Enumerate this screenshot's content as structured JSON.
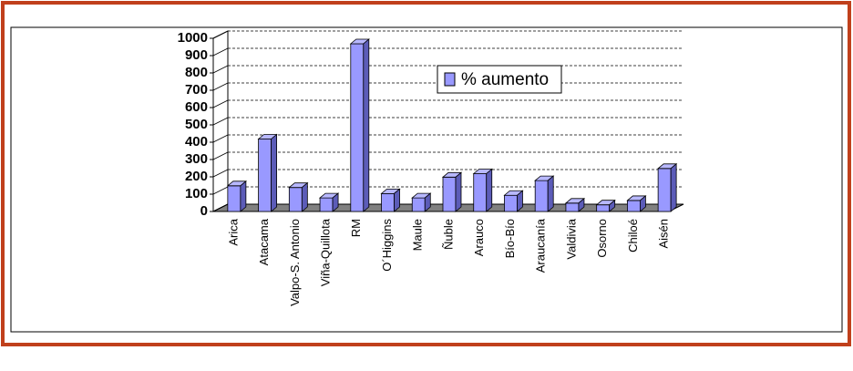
{
  "chart_data": {
    "type": "bar3d",
    "categories": [
      "Arica",
      "Atacama",
      "Valpo-S. Antonio",
      "Viña-Quillota",
      "RM",
      "O´Higgins",
      "Maule",
      "Ñuble",
      "Arauco",
      "Bío-Bío",
      "Araucanía",
      "Valdivia",
      "Osorno",
      "Chiloé",
      "Aisén"
    ],
    "series": [
      {
        "name": "% aumento",
        "color": "#9999ff",
        "values": [
          180,
          450,
          170,
          110,
          1000,
          135,
          110,
          230,
          250,
          125,
          210,
          80,
          70,
          95,
          280
        ]
      }
    ],
    "ylim": [
      0,
      1000
    ],
    "yticks": [
      0,
      100,
      200,
      300,
      400,
      500,
      600,
      700,
      800,
      900,
      1000
    ],
    "grid": true,
    "legend": "top"
  }
}
